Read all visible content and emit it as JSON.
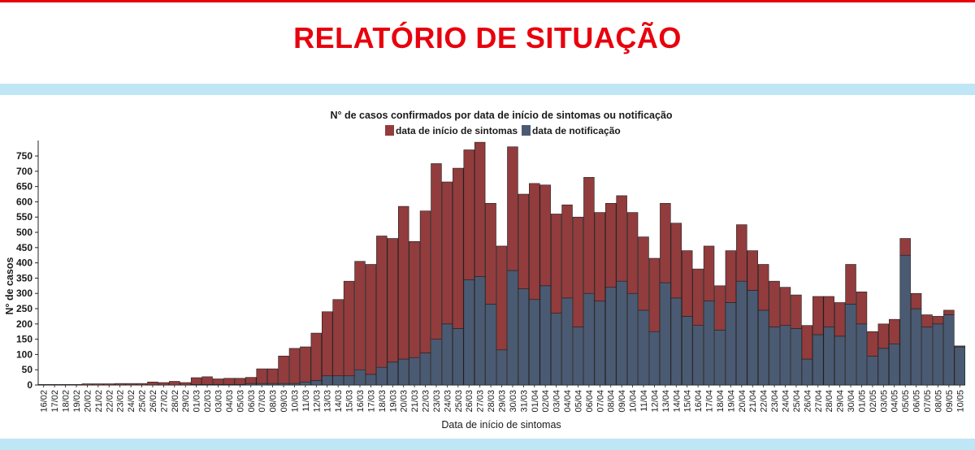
{
  "header": {
    "title": "RELATÓRIO DE SITUAÇÃO"
  },
  "colors": {
    "accent": "#e8000d",
    "band": "#bfe6f5",
    "symptoms": "#923c3d",
    "notification": "#4a5a72"
  },
  "chart_data": {
    "type": "bar",
    "stacked": true,
    "title": "N° de casos confirmados por data de início de sintomas ou notificação",
    "xlabel": "Data de início de sintomas",
    "ylabel": "N° de casos",
    "ylim": [
      0,
      790
    ],
    "yticks": [
      0,
      50,
      100,
      150,
      200,
      250,
      300,
      350,
      400,
      450,
      500,
      550,
      600,
      650,
      700,
      750
    ],
    "grid": false,
    "legend_position": "top",
    "categories": [
      "16/02",
      "17/02",
      "18/02",
      "19/02",
      "20/02",
      "21/02",
      "22/02",
      "23/02",
      "24/02",
      "25/02",
      "26/02",
      "27/02",
      "28/02",
      "29/02",
      "01/03",
      "02/03",
      "03/03",
      "04/03",
      "05/03",
      "06/03",
      "07/03",
      "08/03",
      "09/03",
      "10/03",
      "11/03",
      "12/03",
      "13/03",
      "14/03",
      "15/03",
      "16/03",
      "17/03",
      "18/03",
      "19/03",
      "20/03",
      "21/03",
      "22/03",
      "23/03",
      "24/03",
      "25/03",
      "26/03",
      "27/03",
      "28/03",
      "29/03",
      "30/03",
      "31/03",
      "01/04",
      "02/04",
      "03/04",
      "04/04",
      "05/04",
      "06/04",
      "07/04",
      "08/04",
      "09/04",
      "10/04",
      "11/04",
      "12/04",
      "13/04",
      "14/04",
      "15/04",
      "16/04",
      "17/04",
      "18/04",
      "19/04",
      "20/04",
      "21/04",
      "22/04",
      "23/04",
      "24/04",
      "25/04",
      "26/04",
      "27/04",
      "28/04",
      "29/04",
      "30/04",
      "01/05",
      "02/05",
      "03/05",
      "04/05",
      "05/05",
      "06/05",
      "07/05",
      "08/05",
      "09/05",
      "10/05"
    ],
    "series": [
      {
        "name": "data de início de sintomas",
        "color": "#923c3d",
        "values": [
          2,
          2,
          2,
          2,
          4,
          4,
          4,
          5,
          5,
          5,
          10,
          8,
          12,
          8,
          22,
          25,
          18,
          20,
          20,
          20,
          48,
          48,
          90,
          115,
          115,
          155,
          210,
          250,
          310,
          355,
          360,
          430,
          405,
          500,
          380,
          465,
          575,
          465,
          525,
          425,
          440,
          330,
          340,
          405,
          310,
          380,
          330,
          325,
          305,
          360,
          380,
          290,
          275,
          280,
          265,
          240,
          240,
          260,
          245,
          215,
          185,
          180,
          145,
          170,
          185,
          130,
          150,
          150,
          125,
          110,
          110,
          125,
          100,
          110,
          130,
          105,
          80,
          80,
          80,
          55,
          50,
          40,
          25,
          15,
          3
        ]
      },
      {
        "name": "data de notificação",
        "color": "#4a5a72",
        "values": [
          0,
          0,
          0,
          0,
          0,
          0,
          0,
          0,
          0,
          0,
          0,
          0,
          0,
          0,
          2,
          2,
          2,
          2,
          2,
          5,
          5,
          5,
          5,
          5,
          10,
          15,
          30,
          30,
          30,
          50,
          35,
          58,
          75,
          85,
          90,
          105,
          150,
          200,
          185,
          345,
          355,
          265,
          115,
          375,
          315,
          280,
          325,
          235,
          285,
          190,
          300,
          275,
          320,
          340,
          300,
          245,
          175,
          335,
          285,
          225,
          195,
          275,
          180,
          270,
          340,
          310,
          245,
          190,
          195,
          185,
          85,
          165,
          190,
          160,
          265,
          200,
          95,
          120,
          135,
          425,
          250,
          190,
          200,
          230,
          125
        ]
      }
    ]
  }
}
